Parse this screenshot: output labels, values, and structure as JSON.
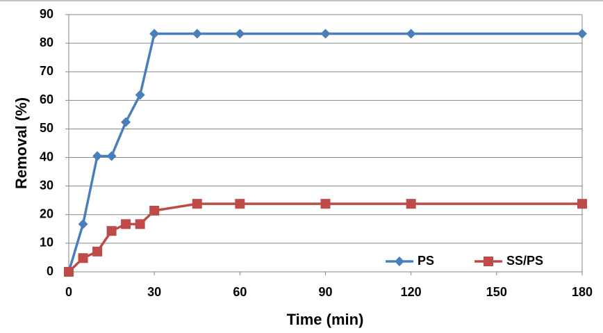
{
  "chart_data": {
    "type": "line",
    "xlabel": "Time (min)",
    "ylabel": "Removal (%)",
    "x": [
      0,
      5,
      10,
      15,
      20,
      25,
      30,
      45,
      60,
      90,
      120,
      180
    ],
    "series": [
      {
        "name": "PS",
        "color": "#4a7ebb",
        "marker": "diamond",
        "values": [
          0,
          16.7,
          40.5,
          40.5,
          52.4,
          61.9,
          83.3,
          83.3,
          83.3,
          83.3,
          83.3,
          83.3
        ]
      },
      {
        "name": "SS/PS",
        "color": "#be4b48",
        "marker": "square",
        "values": [
          0,
          4.8,
          7.1,
          14.3,
          16.7,
          16.7,
          21.4,
          23.8,
          23.8,
          23.8,
          23.8,
          23.8
        ]
      }
    ],
    "xlim": [
      0,
      180
    ],
    "xticks": [
      0,
      30,
      60,
      90,
      120,
      150,
      180
    ],
    "ylim": [
      0,
      90
    ],
    "yticks": [
      0,
      10,
      20,
      30,
      40,
      50,
      60,
      70,
      80,
      90
    ],
    "grid": true,
    "legend": "lower right"
  }
}
